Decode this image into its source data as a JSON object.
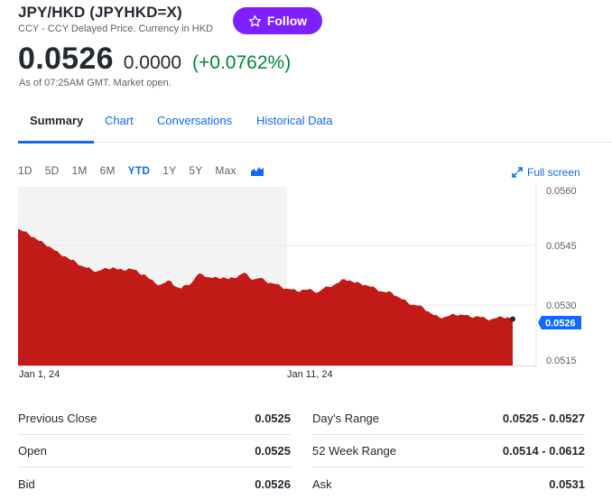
{
  "header": {
    "title": "JPY/HKD (JPYHKD=X)",
    "subtitle": "CCY - CCY Delayed Price. Currency in HKD",
    "follow_label": "Follow"
  },
  "quote": {
    "price": "0.0526",
    "change": "0.0000",
    "change_pct": "(+0.0762%)",
    "as_of": "As of 07:25AM GMT. Market open."
  },
  "tabs": [
    "Summary",
    "Chart",
    "Conversations",
    "Historical Data"
  ],
  "ranges": [
    "1D",
    "5D",
    "1M",
    "6M",
    "YTD",
    "1Y",
    "5Y",
    "Max"
  ],
  "active_range": "YTD",
  "fullscreen_label": "Full screen",
  "colors": {
    "accent": "#0f69ff",
    "follow": "#7e1fff",
    "positive": "#00873c",
    "area": "#c21b17"
  },
  "chart_data": {
    "type": "area",
    "y_ticks": [
      "0.0560",
      "0.0545",
      "0.0530",
      "0.0515"
    ],
    "x_ticks": [
      "Jan 1, 24",
      "Jan 11, 24"
    ],
    "current_label": "0.0526",
    "ylim": [
      0.0515,
      0.056
    ],
    "series": [
      {
        "values": [
          0.05497,
          0.0549,
          0.05483,
          0.05475,
          0.05465,
          0.05458,
          0.0545,
          0.0544,
          0.0543,
          0.05425,
          0.05415,
          0.0541,
          0.054,
          0.05395,
          0.0539,
          0.05385,
          0.0539,
          0.05392,
          0.05396,
          0.0539,
          0.05388,
          0.05393,
          0.0539,
          0.0538,
          0.05378,
          0.05365,
          0.05355,
          0.0535,
          0.05356,
          0.0536,
          0.05345,
          0.0534,
          0.0535,
          0.05355,
          0.05375,
          0.05378,
          0.0537,
          0.05368,
          0.05368,
          0.0537,
          0.05365,
          0.05368,
          0.05375,
          0.05382,
          0.05368,
          0.05365,
          0.05368,
          0.0536,
          0.05355,
          0.05352,
          0.05345,
          0.0534,
          0.05338,
          0.05333,
          0.05337,
          0.05337,
          0.05335,
          0.0533,
          0.0534,
          0.05345,
          0.0535,
          0.05356,
          0.05365,
          0.05362,
          0.05355,
          0.05354,
          0.0535,
          0.05345,
          0.0534,
          0.05333,
          0.0533,
          0.0533,
          0.0532,
          0.05312,
          0.05304,
          0.05298,
          0.05295,
          0.0529,
          0.0528,
          0.0527,
          0.05265,
          0.05265,
          0.05269,
          0.05272,
          0.05272,
          0.0527,
          0.05265,
          0.05268,
          0.05265,
          0.0526,
          0.0526,
          0.05263,
          0.05265,
          0.05265,
          0.0526
        ]
      }
    ]
  },
  "stats": [
    {
      "label": "Previous Close",
      "value": "0.0525"
    },
    {
      "label": "Day's Range",
      "value": "0.0525 - 0.0527"
    },
    {
      "label": "Open",
      "value": "0.0525"
    },
    {
      "label": "52 Week Range",
      "value": "0.0514 - 0.0612"
    },
    {
      "label": "Bid",
      "value": "0.0526"
    },
    {
      "label": "Ask",
      "value": "0.0531"
    }
  ]
}
